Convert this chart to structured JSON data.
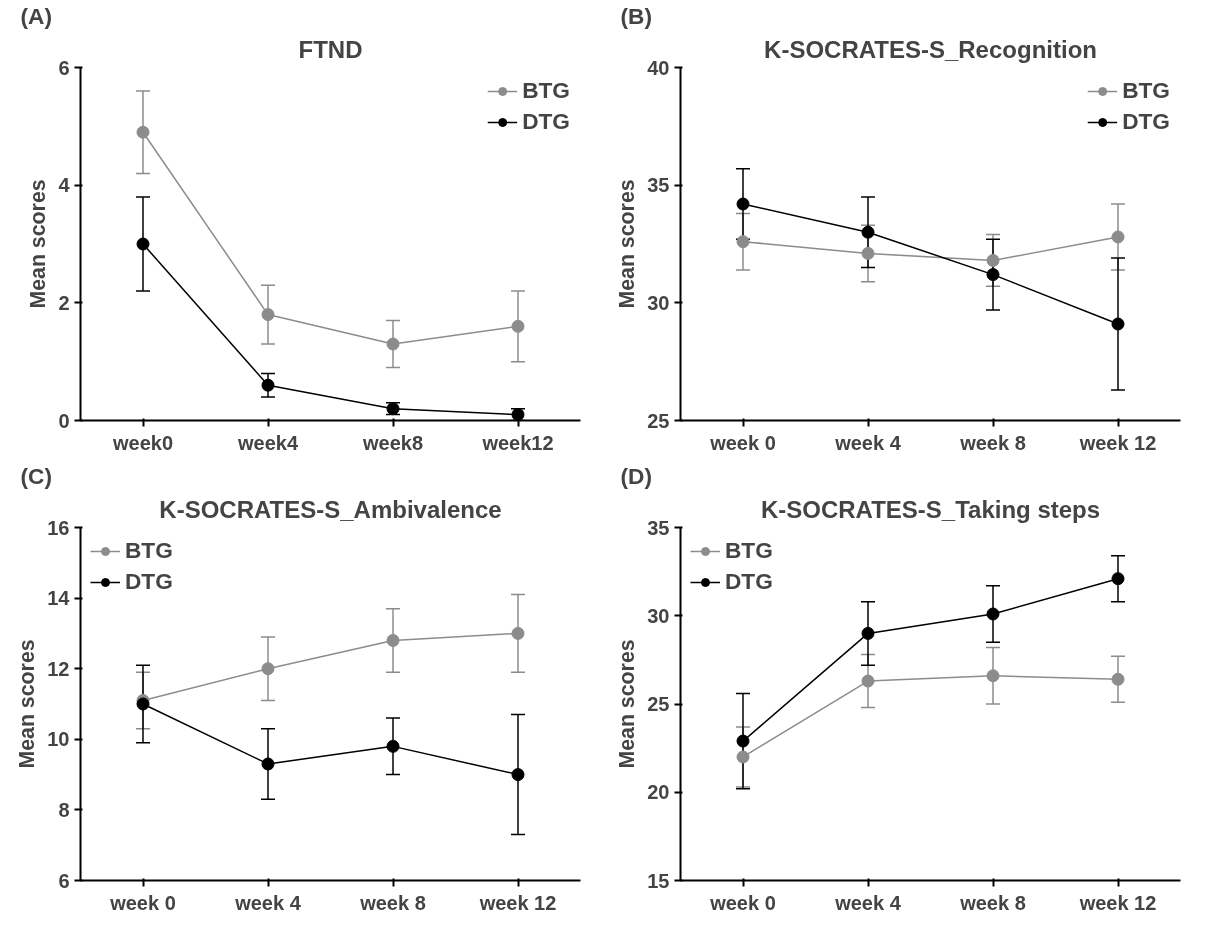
{
  "chart_data": [
    {
      "type": "line",
      "title": "FTND",
      "annotations": [
        "(A)"
      ],
      "ylabel": "Mean scores",
      "categories": [
        "week0",
        "week4",
        "week8",
        "week12"
      ],
      "ylim": [
        0,
        6
      ],
      "yticks": [
        0,
        2,
        4,
        6
      ],
      "legend": "top right",
      "marker": "circle",
      "grid": false,
      "series": [
        {
          "name": "BTG",
          "color": "#8c8c8c",
          "values": [
            4.9,
            1.8,
            1.3,
            1.6
          ],
          "errors": [
            [
              4.2,
              5.6
            ],
            [
              1.3,
              2.3
            ],
            [
              0.9,
              1.7
            ],
            [
              1.0,
              2.2
            ]
          ]
        },
        {
          "name": "DTG",
          "color": "#000000",
          "values": [
            3.0,
            0.6,
            0.2,
            0.1
          ],
          "errors": [
            [
              2.2,
              3.8
            ],
            [
              0.4,
              0.8
            ],
            [
              0.1,
              0.3
            ],
            [
              0.0,
              0.2
            ]
          ]
        }
      ]
    },
    {
      "type": "line",
      "title": "K-SOCRATES-S_Recognition",
      "annotations": [
        "(B)"
      ],
      "ylabel": "Mean scores",
      "categories": [
        "week 0",
        "week 4",
        "week 8",
        "week 12"
      ],
      "ylim": [
        25,
        40
      ],
      "yticks": [
        25,
        30,
        35,
        40
      ],
      "legend": "top right",
      "marker": "circle",
      "grid": false,
      "series": [
        {
          "name": "BTG",
          "color": "#8c8c8c",
          "values": [
            32.6,
            32.1,
            31.8,
            32.8
          ],
          "errors": [
            [
              31.4,
              33.8
            ],
            [
              30.9,
              33.3
            ],
            [
              30.7,
              32.9
            ],
            [
              31.4,
              34.2
            ]
          ]
        },
        {
          "name": "DTG",
          "color": "#000000",
          "values": [
            34.2,
            33.0,
            31.2,
            29.1
          ],
          "errors": [
            [
              32.7,
              35.7
            ],
            [
              31.5,
              34.5
            ],
            [
              29.7,
              32.7
            ],
            [
              26.3,
              31.9
            ]
          ]
        }
      ]
    },
    {
      "type": "line",
      "title": "K-SOCRATES-S_Ambivalence",
      "annotations": [
        "(C)"
      ],
      "ylabel": "Mean scores",
      "categories": [
        "week 0",
        "week 4",
        "week 8",
        "week 12"
      ],
      "ylim": [
        6,
        16
      ],
      "yticks": [
        6,
        8,
        10,
        12,
        14,
        16
      ],
      "legend": "top left",
      "marker": "circle",
      "grid": false,
      "series": [
        {
          "name": "BTG",
          "color": "#8c8c8c",
          "values": [
            11.1,
            12.0,
            12.8,
            13.0
          ],
          "errors": [
            [
              10.3,
              11.9
            ],
            [
              11.1,
              12.9
            ],
            [
              11.9,
              13.7
            ],
            [
              11.9,
              14.1
            ]
          ]
        },
        {
          "name": "DTG",
          "color": "#000000",
          "values": [
            11.0,
            9.3,
            9.8,
            9.0
          ],
          "errors": [
            [
              9.9,
              12.1
            ],
            [
              8.3,
              10.3
            ],
            [
              9.0,
              10.6
            ],
            [
              7.3,
              10.7
            ]
          ]
        }
      ]
    },
    {
      "type": "line",
      "title": "K-SOCRATES-S_Taking steps",
      "annotations": [
        "(D)"
      ],
      "ylabel": "Mean scores",
      "categories": [
        "week 0",
        "week 4",
        "week 8",
        "week 12"
      ],
      "ylim": [
        15,
        35
      ],
      "yticks": [
        15,
        20,
        25,
        30,
        35
      ],
      "legend": "top left",
      "marker": "circle",
      "grid": false,
      "series": [
        {
          "name": "BTG",
          "color": "#8c8c8c",
          "values": [
            22.0,
            26.3,
            26.6,
            26.4
          ],
          "errors": [
            [
              20.3,
              23.7
            ],
            [
              24.8,
              27.8
            ],
            [
              25.0,
              28.2
            ],
            [
              25.1,
              27.7
            ]
          ]
        },
        {
          "name": "DTG",
          "color": "#000000",
          "values": [
            22.9,
            29.0,
            30.1,
            32.1
          ],
          "errors": [
            [
              20.2,
              25.6
            ],
            [
              27.2,
              30.8
            ],
            [
              28.5,
              31.7
            ],
            [
              30.8,
              33.4
            ]
          ]
        }
      ]
    }
  ]
}
